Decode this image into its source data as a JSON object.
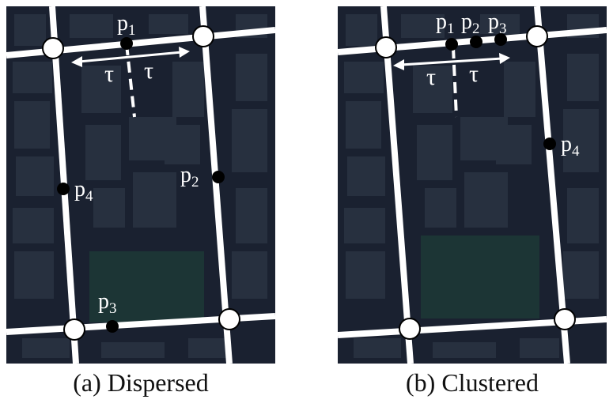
{
  "panels": [
    {
      "caption": "(a) Dispersed",
      "points": [
        {
          "base": "p",
          "sub": "1"
        },
        {
          "base": "p",
          "sub": "2"
        },
        {
          "base": "p",
          "sub": "3"
        },
        {
          "base": "p",
          "sub": "4"
        }
      ],
      "tau_left": "τ",
      "tau_right": "τ"
    },
    {
      "caption": "(b) Clustered",
      "points": [
        {
          "base": "p",
          "sub": "1"
        },
        {
          "base": "p",
          "sub": "2"
        },
        {
          "base": "p",
          "sub": "3"
        },
        {
          "base": "p",
          "sub": "4"
        }
      ],
      "tau_left": "τ",
      "tau_right": "τ"
    }
  ],
  "colors": {
    "background": "#1a2130",
    "building": "#27303f",
    "park": "#1c3535",
    "road": "#ffffff",
    "node_fill": "#ffffff",
    "point": "#000000",
    "label": "#ffffff"
  }
}
